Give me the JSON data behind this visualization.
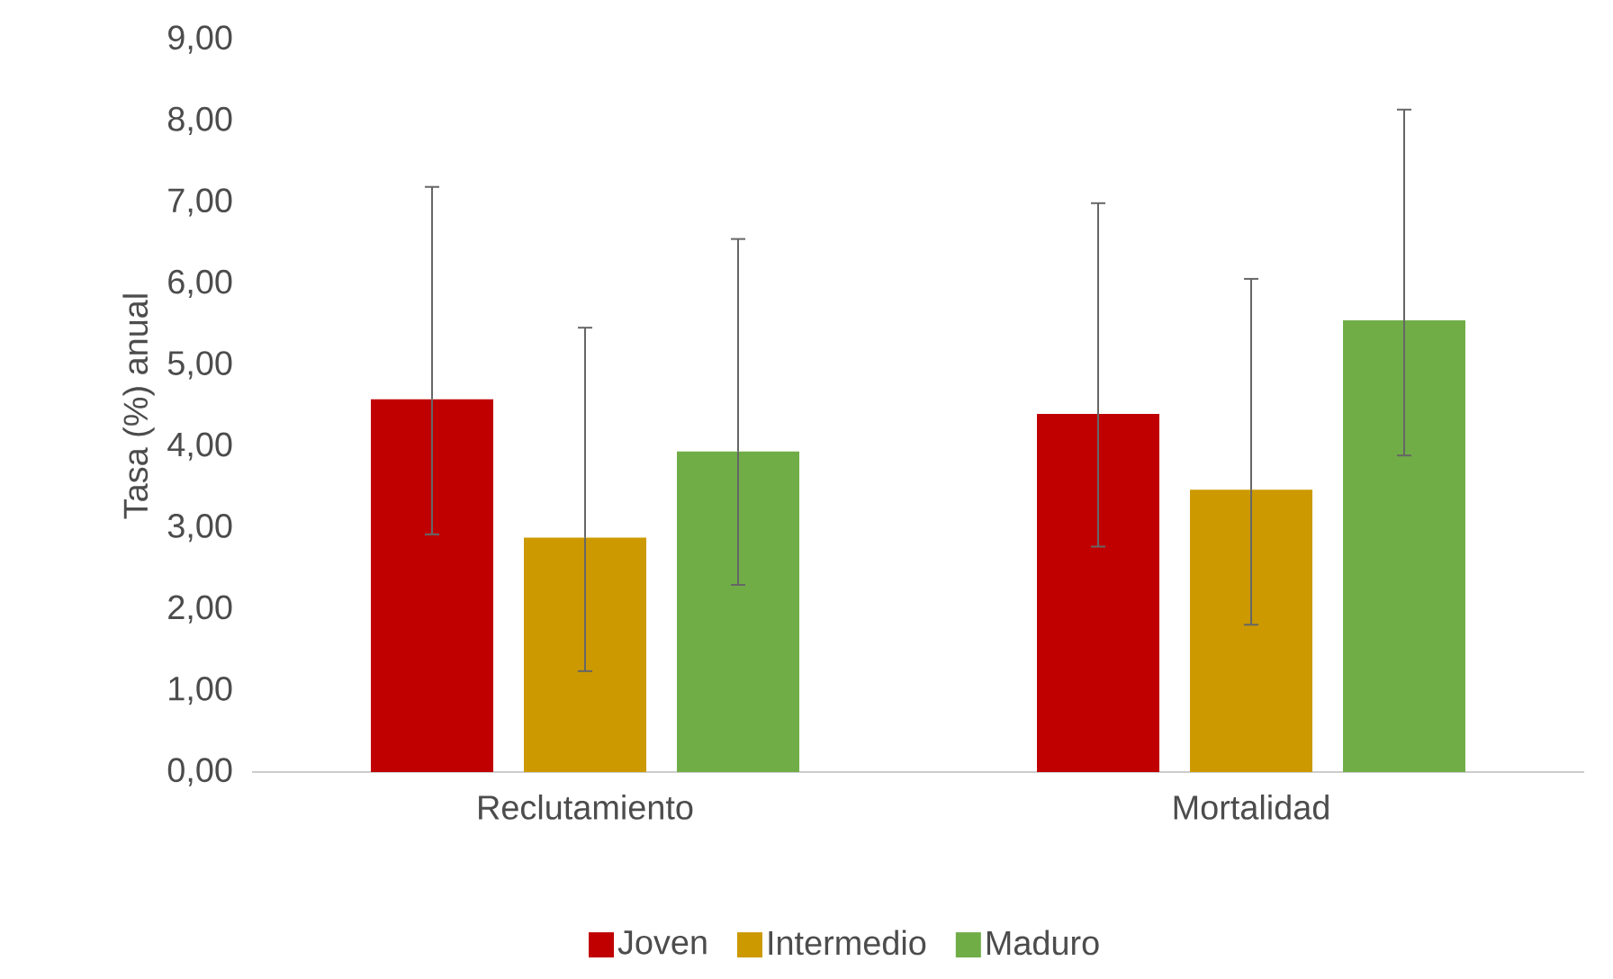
{
  "chart_data": {
    "type": "bar",
    "ylabel": "Tasa (%) anual",
    "categories": [
      "Reclutamiento",
      "Mortalidad"
    ],
    "series": [
      {
        "name": "Joven",
        "color": "#c00000",
        "values": [
          4.58,
          4.4
        ],
        "errors": [
          [
            2.92,
            7.19
          ],
          [
            2.77,
            6.99
          ]
        ]
      },
      {
        "name": "Intermedio",
        "color": "#cc9900",
        "values": [
          2.88,
          3.47
        ],
        "errors": [
          [
            1.24,
            5.46
          ],
          [
            1.81,
            6.06
          ]
        ]
      },
      {
        "name": "Maduro",
        "color": "#70ad47",
        "values": [
          3.94,
          5.55
        ],
        "errors": [
          [
            2.3,
            6.55
          ],
          [
            3.89,
            8.14
          ]
        ]
      }
    ],
    "ylim": [
      0,
      9
    ],
    "yticks": [
      {
        "value": 0,
        "label": "0,00"
      },
      {
        "value": 1,
        "label": "1,00"
      },
      {
        "value": 2,
        "label": "2,00"
      },
      {
        "value": 3,
        "label": "3,00"
      },
      {
        "value": 4,
        "label": "4,00"
      },
      {
        "value": 5,
        "label": "5,00"
      },
      {
        "value": 6,
        "label": "6,00"
      },
      {
        "value": 7,
        "label": "7,00"
      },
      {
        "value": 8,
        "label": "8,00"
      },
      {
        "value": 9,
        "label": "9,00"
      }
    ],
    "grid": false,
    "legend": "bottom"
  }
}
